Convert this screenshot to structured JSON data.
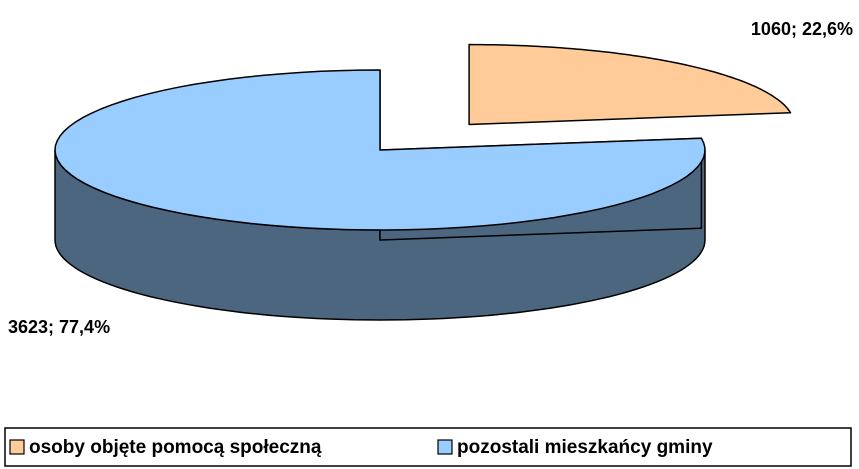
{
  "chart_data": {
    "type": "pie",
    "categories": [
      "osoby objęte pomocą społeczną",
      "pozostali mieszkańcy gminy"
    ],
    "values": [
      1060,
      3623
    ],
    "value_labels": [
      "1060; 22,6%",
      "3623; 77,4%"
    ],
    "colors": [
      "#FFCC99",
      "#99CCFF"
    ],
    "legend": "bottom"
  }
}
